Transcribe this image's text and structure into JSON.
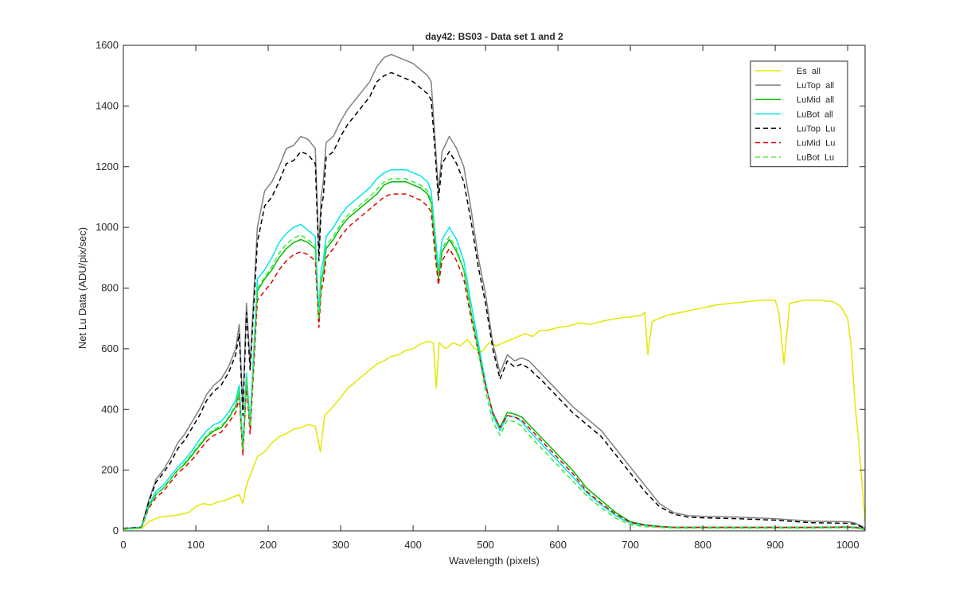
{
  "chart_data": {
    "type": "line",
    "title": "day42: BS03 - Data set 1 and 2",
    "xlabel": "Wavelength (pixels)",
    "ylabel": "Net Lu Data (ADU/pix/sec)",
    "xlim": [
      0,
      1024
    ],
    "ylim": [
      0,
      1600
    ],
    "xticks": [
      0,
      100,
      200,
      300,
      400,
      500,
      600,
      700,
      800,
      900,
      1000
    ],
    "yticks": [
      0,
      200,
      400,
      600,
      800,
      1000,
      1200,
      1400,
      1600
    ],
    "grid": false,
    "legend_position": "top-right",
    "series": [
      {
        "name": "Es  all",
        "color": "#e6e600",
        "dash": "solid",
        "x": [
          0,
          25,
          35,
          50,
          70,
          90,
          100,
          110,
          120,
          130,
          140,
          150,
          160,
          165,
          170,
          178,
          185,
          195,
          205,
          215,
          225,
          235,
          245,
          255,
          265,
          272,
          278,
          290,
          300,
          310,
          320,
          330,
          340,
          350,
          360,
          370,
          380,
          390,
          400,
          410,
          420,
          428,
          432,
          436,
          445,
          455,
          465,
          475,
          485,
          495,
          505,
          515,
          525,
          535,
          545,
          555,
          565,
          575,
          585,
          600,
          615,
          630,
          645,
          660,
          680,
          700,
          715,
          720,
          724,
          730,
          740,
          750,
          760,
          780,
          800,
          820,
          840,
          860,
          880,
          900,
          905,
          912,
          920,
          940,
          960,
          980,
          990,
          1000,
          1005,
          1010,
          1015,
          1020,
          1024
        ],
        "y": [
          5,
          8,
          30,
          45,
          50,
          60,
          80,
          90,
          85,
          95,
          100,
          110,
          120,
          90,
          150,
          200,
          245,
          260,
          290,
          310,
          320,
          335,
          340,
          350,
          345,
          260,
          380,
          410,
          440,
          470,
          490,
          510,
          530,
          550,
          560,
          575,
          580,
          595,
          600,
          615,
          625,
          620,
          470,
          620,
          600,
          620,
          610,
          630,
          600,
          590,
          620,
          610,
          620,
          630,
          640,
          650,
          640,
          660,
          660,
          670,
          675,
          685,
          680,
          690,
          700,
          705,
          710,
          720,
          580,
          690,
          700,
          710,
          715,
          725,
          735,
          745,
          750,
          755,
          760,
          760,
          720,
          550,
          750,
          760,
          760,
          755,
          740,
          700,
          600,
          420,
          300,
          150,
          30
        ]
      },
      {
        "name": "LuTop  all",
        "color": "#808080",
        "dash": "solid",
        "x": [
          0,
          25,
          35,
          45,
          55,
          65,
          75,
          85,
          95,
          105,
          115,
          125,
          135,
          145,
          155,
          160,
          165,
          170,
          175,
          185,
          195,
          205,
          215,
          225,
          235,
          245,
          255,
          265,
          270,
          273,
          276,
          280,
          290,
          300,
          310,
          320,
          330,
          340,
          350,
          360,
          370,
          380,
          390,
          400,
          410,
          420,
          425,
          430,
          435,
          440,
          450,
          460,
          470,
          480,
          490,
          500,
          510,
          520,
          530,
          540,
          550,
          560,
          580,
          600,
          620,
          640,
          660,
          680,
          700,
          720,
          740,
          760,
          780,
          800,
          850,
          900,
          950,
          1000,
          1010,
          1020,
          1024
        ],
        "y": [
          8,
          12,
          100,
          170,
          200,
          240,
          290,
          320,
          360,
          400,
          450,
          480,
          500,
          540,
          600,
          680,
          400,
          750,
          550,
          1000,
          1120,
          1150,
          1200,
          1260,
          1270,
          1300,
          1290,
          1260,
          920,
          1100,
          1150,
          1280,
          1300,
          1350,
          1390,
          1420,
          1450,
          1480,
          1530,
          1560,
          1570,
          1560,
          1550,
          1540,
          1520,
          1500,
          1480,
          1300,
          1120,
          1250,
          1300,
          1260,
          1200,
          1060,
          900,
          780,
          620,
          520,
          580,
          560,
          570,
          560,
          510,
          460,
          410,
          370,
          330,
          270,
          210,
          150,
          90,
          60,
          50,
          48,
          45,
          40,
          32,
          30,
          26,
          15,
          8
        ]
      },
      {
        "name": "LuMid  all",
        "color": "#00bb00",
        "dash": "solid",
        "x": [
          0,
          25,
          35,
          45,
          55,
          65,
          75,
          85,
          95,
          105,
          115,
          125,
          135,
          145,
          155,
          160,
          165,
          170,
          175,
          185,
          195,
          205,
          215,
          225,
          235,
          245,
          255,
          265,
          270,
          273,
          276,
          280,
          290,
          300,
          310,
          320,
          330,
          340,
          350,
          360,
          370,
          380,
          390,
          400,
          410,
          420,
          425,
          430,
          435,
          440,
          450,
          460,
          470,
          480,
          490,
          500,
          510,
          520,
          530,
          540,
          550,
          560,
          580,
          600,
          620,
          640,
          660,
          680,
          700,
          720,
          740,
          760,
          780,
          800,
          850,
          900,
          950,
          1000,
          1010,
          1020,
          1024
        ],
        "y": [
          6,
          10,
          80,
          120,
          140,
          170,
          200,
          220,
          250,
          280,
          310,
          330,
          340,
          370,
          410,
          460,
          260,
          500,
          340,
          790,
          830,
          860,
          900,
          930,
          950,
          960,
          950,
          930,
          690,
          820,
          850,
          930,
          960,
          1000,
          1030,
          1050,
          1070,
          1090,
          1110,
          1140,
          1150,
          1150,
          1150,
          1140,
          1130,
          1110,
          1080,
          950,
          830,
          920,
          960,
          920,
          860,
          720,
          600,
          480,
          390,
          340,
          390,
          385,
          375,
          350,
          300,
          250,
          200,
          140,
          100,
          60,
          30,
          20,
          15,
          12,
          12,
          12,
          12,
          12,
          12,
          13,
          12,
          8,
          5
        ]
      },
      {
        "name": "LuBot  all",
        "color": "#00e5ee",
        "dash": "solid",
        "x": [
          0,
          25,
          35,
          45,
          55,
          65,
          75,
          85,
          95,
          105,
          115,
          125,
          135,
          145,
          155,
          160,
          165,
          170,
          175,
          185,
          195,
          205,
          215,
          225,
          235,
          245,
          255,
          265,
          270,
          273,
          276,
          280,
          290,
          300,
          310,
          320,
          330,
          340,
          350,
          360,
          370,
          380,
          390,
          400,
          410,
          420,
          425,
          430,
          435,
          440,
          450,
          460,
          470,
          480,
          490,
          500,
          510,
          520,
          530,
          540,
          550,
          560,
          580,
          600,
          620,
          640,
          660,
          680,
          700,
          720,
          740,
          760,
          780,
          800,
          850,
          900,
          950,
          1000,
          1010,
          1020,
          1024
        ],
        "y": [
          6,
          10,
          85,
          130,
          150,
          180,
          210,
          235,
          265,
          300,
          330,
          350,
          360,
          390,
          430,
          480,
          280,
          520,
          360,
          830,
          860,
          900,
          950,
          980,
          1000,
          1010,
          990,
          970,
          720,
          860,
          890,
          970,
          1000,
          1040,
          1070,
          1090,
          1110,
          1130,
          1160,
          1180,
          1190,
          1190,
          1190,
          1180,
          1170,
          1150,
          1120,
          990,
          860,
          960,
          1000,
          960,
          890,
          750,
          620,
          490,
          380,
          330,
          380,
          375,
          360,
          330,
          280,
          230,
          180,
          125,
          85,
          50,
          25,
          18,
          14,
          11,
          11,
          11,
          11,
          11,
          11,
          12,
          11,
          7,
          4
        ]
      },
      {
        "name": "LuTop  Lu",
        "color": "#000000",
        "dash": "dashed",
        "x": [
          0,
          25,
          35,
          45,
          55,
          65,
          75,
          85,
          95,
          105,
          115,
          125,
          135,
          145,
          155,
          160,
          165,
          170,
          175,
          185,
          195,
          205,
          215,
          225,
          235,
          245,
          255,
          265,
          270,
          273,
          276,
          280,
          290,
          300,
          310,
          320,
          330,
          340,
          350,
          360,
          370,
          380,
          390,
          400,
          410,
          420,
          425,
          430,
          435,
          440,
          450,
          460,
          470,
          480,
          490,
          500,
          510,
          520,
          530,
          540,
          550,
          560,
          580,
          600,
          620,
          640,
          660,
          680,
          700,
          720,
          740,
          760,
          780,
          800,
          850,
          900,
          950,
          1000,
          1010,
          1020,
          1024
        ],
        "y": [
          8,
          12,
          95,
          160,
          190,
          225,
          270,
          300,
          340,
          380,
          430,
          460,
          480,
          520,
          580,
          650,
          380,
          720,
          530,
          950,
          1070,
          1100,
          1150,
          1210,
          1220,
          1250,
          1240,
          1210,
          890,
          1060,
          1100,
          1230,
          1250,
          1300,
          1340,
          1370,
          1400,
          1430,
          1480,
          1500,
          1510,
          1500,
          1490,
          1480,
          1460,
          1440,
          1420,
          1260,
          1090,
          1210,
          1250,
          1210,
          1150,
          1020,
          870,
          750,
          600,
          500,
          560,
          540,
          550,
          535,
          490,
          440,
          390,
          350,
          310,
          250,
          190,
          130,
          80,
          55,
          45,
          43,
          40,
          35,
          27,
          25,
          22,
          12,
          6
        ]
      },
      {
        "name": "LuMid  Lu",
        "color": "#e00000",
        "dash": "dashed",
        "x": [
          0,
          25,
          35,
          45,
          55,
          65,
          75,
          85,
          95,
          105,
          115,
          125,
          135,
          145,
          155,
          160,
          165,
          170,
          175,
          185,
          195,
          205,
          215,
          225,
          235,
          245,
          255,
          265,
          270,
          273,
          276,
          280,
          290,
          300,
          310,
          320,
          330,
          340,
          350,
          360,
          370,
          380,
          390,
          400,
          410,
          420,
          425,
          430,
          435,
          440,
          450,
          460,
          470,
          480,
          490,
          500,
          510,
          520,
          530,
          540,
          550,
          560,
          580,
          600,
          620,
          640,
          660,
          680,
          700,
          720,
          740,
          760,
          780,
          800,
          850,
          900,
          950,
          1000,
          1010,
          1020,
          1024
        ],
        "y": [
          6,
          10,
          75,
          110,
          130,
          160,
          190,
          210,
          235,
          265,
          295,
          315,
          325,
          355,
          390,
          440,
          250,
          480,
          320,
          760,
          790,
          820,
          860,
          890,
          910,
          920,
          910,
          890,
          670,
          790,
          820,
          900,
          930,
          970,
          1000,
          1020,
          1040,
          1060,
          1080,
          1100,
          1110,
          1110,
          1110,
          1100,
          1090,
          1070,
          1050,
          920,
          810,
          890,
          930,
          890,
          830,
          700,
          590,
          480,
          390,
          340,
          380,
          375,
          365,
          340,
          290,
          240,
          190,
          130,
          90,
          55,
          28,
          18,
          14,
          11,
          11,
          11,
          11,
          11,
          11,
          12,
          11,
          7,
          4
        ]
      },
      {
        "name": "LuBot  Lu",
        "color": "#33ee33",
        "dash": "dashed",
        "x": [
          0,
          25,
          35,
          45,
          55,
          65,
          75,
          85,
          95,
          105,
          115,
          125,
          135,
          145,
          155,
          160,
          165,
          170,
          175,
          185,
          195,
          205,
          215,
          225,
          235,
          245,
          255,
          265,
          270,
          273,
          276,
          280,
          290,
          300,
          310,
          320,
          330,
          340,
          350,
          360,
          370,
          380,
          390,
          400,
          410,
          420,
          425,
          430,
          435,
          440,
          450,
          460,
          470,
          480,
          490,
          500,
          510,
          520,
          530,
          540,
          550,
          560,
          580,
          600,
          620,
          640,
          660,
          680,
          700,
          720,
          740,
          760,
          780,
          800,
          850,
          900,
          950,
          1000,
          1010,
          1020,
          1024
        ],
        "y": [
          6,
          10,
          80,
          120,
          140,
          170,
          200,
          225,
          255,
          285,
          315,
          335,
          345,
          375,
          415,
          465,
          270,
          505,
          345,
          800,
          835,
          870,
          915,
          945,
          965,
          975,
          960,
          940,
          700,
          830,
          860,
          940,
          970,
          1010,
          1040,
          1060,
          1080,
          1100,
          1125,
          1150,
          1160,
          1160,
          1160,
          1150,
          1140,
          1120,
          1090,
          960,
          840,
          930,
          970,
          930,
          860,
          720,
          590,
          460,
          360,
          315,
          365,
          360,
          345,
          315,
          265,
          215,
          165,
          115,
          75,
          42,
          20,
          14,
          11,
          9,
          9,
          9,
          9,
          9,
          9,
          10,
          9,
          6,
          3
        ]
      }
    ]
  }
}
